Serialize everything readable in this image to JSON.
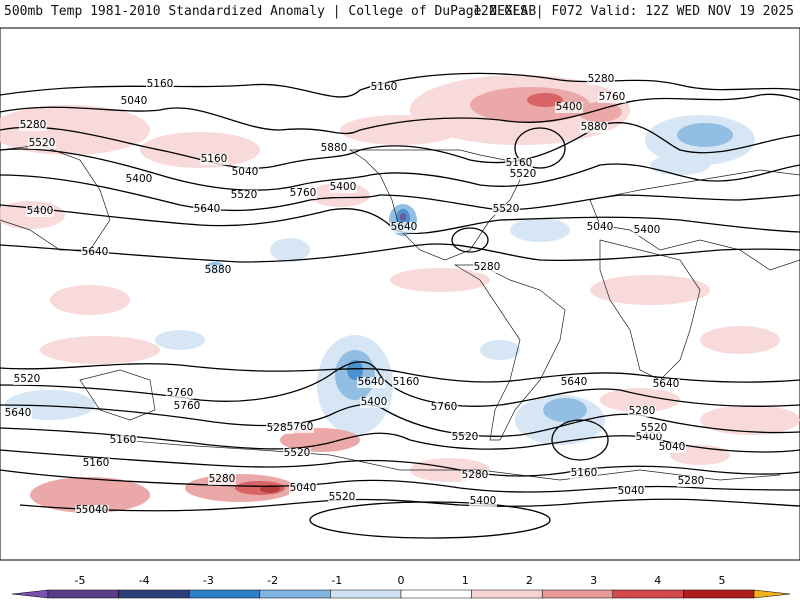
{
  "header": {
    "left": "500mb Temp 1981-2010 Standardized Anomaly | College of DuPage NEXLAB",
    "right": "12Z GFS | F072 Valid: 12Z WED NOV 19 2025"
  },
  "contour_labels": [
    "5160",
    "5160",
    "5040",
    "5280",
    "5520",
    "5160",
    "5400",
    "5040",
    "5520",
    "5640",
    "5280",
    "5760",
    "5400",
    "5880",
    "5880",
    "5160",
    "5520",
    "5400",
    "5760",
    "5640",
    "5520",
    "5400",
    "5640",
    "5880",
    "5280",
    "5400",
    "5520",
    "5640",
    "5760",
    "5760",
    "5640",
    "5400",
    "5760",
    "5520",
    "5280",
    "5640",
    "5400",
    "5520",
    "5280",
    "5040",
    "5160",
    "5760",
    "5520",
    "5280",
    "5040",
    "5160",
    "5280",
    "5160",
    "5040",
    "5640",
    "5760",
    "5520",
    "5400",
    "5280",
    "5040",
    "5160",
    "5040"
  ],
  "colorbar": {
    "ticks": [
      "-5",
      "-4",
      "-3",
      "-2",
      "-1",
      "0",
      "1",
      "2",
      "3",
      "4",
      "5"
    ],
    "colors": [
      "#5a3d8a",
      "#2c3f7a",
      "#2f7fc8",
      "#7fb3e0",
      "#cfe2f3",
      "#ffffff",
      "#f7d4d4",
      "#e89a9a",
      "#d24a4a",
      "#b01c1c",
      "#7a0a0a"
    ],
    "end_low": "#7b4fb0",
    "end_high": "#f0b020"
  }
}
